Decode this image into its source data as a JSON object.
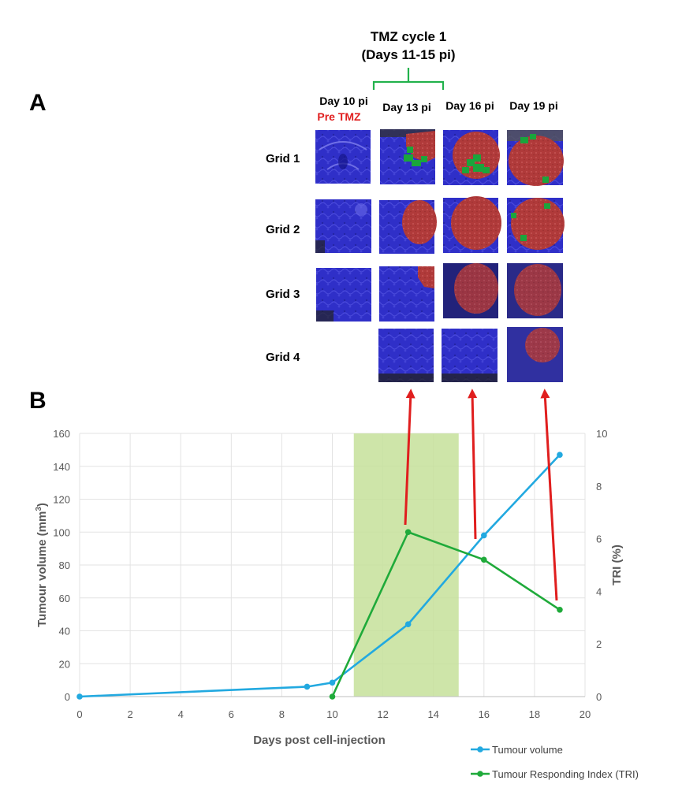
{
  "panels": {
    "a": {
      "label": "A",
      "tmz_bracket": {
        "line1": "TMZ cycle 1",
        "line2": "(Days 11-15 pi)"
      },
      "columns": [
        "Day 10 pi",
        "Day 13 pi",
        "Day 16 pi",
        "Day 19 pi"
      ],
      "pre_treatment_note": "Pre TMZ",
      "rows": [
        "Grid 1",
        "Grid 2",
        "Grid 3",
        "Grid 4"
      ],
      "grid4_day10_shown": false
    },
    "b": {
      "label": "B"
    }
  },
  "chart_data": {
    "type": "line",
    "xlabel": "Days post cell-injection",
    "ylabel_left": "Tumour volume (mm",
    "ylabel_left_sup": "3",
    "ylabel_left_close": ")",
    "ylabel_right": "TRI (%)",
    "xlim": [
      0,
      20
    ],
    "ylim_left": [
      0,
      160
    ],
    "ylim_right": [
      0,
      10
    ],
    "x_ticks": [
      "0",
      "2",
      "4",
      "6",
      "8",
      "10",
      "12",
      "14",
      "16",
      "18",
      "20"
    ],
    "y_left_ticks": [
      "0",
      "20",
      "40",
      "60",
      "80",
      "100",
      "120",
      "140",
      "160"
    ],
    "y_right_ticks": [
      "0",
      "2",
      "4",
      "6",
      "8",
      "10"
    ],
    "shaded_region": {
      "x_start": 10.85,
      "x_end": 15,
      "color": "#c6e09a",
      "meaning": "TMZ cycle 1"
    },
    "series": [
      {
        "name": "Tumour volume",
        "axis": "left",
        "color": "#22a9e0",
        "x": [
          0,
          9,
          10,
          13,
          16,
          19
        ],
        "y": [
          0,
          6,
          8.5,
          44,
          98,
          147
        ]
      },
      {
        "name": "Tumour Responding Index (TRI)",
        "axis": "right",
        "color": "#1faa3a",
        "x": [
          10,
          13,
          16,
          19
        ],
        "y": [
          0,
          6.25,
          5.2,
          3.3
        ]
      }
    ],
    "legend_position": "bottom-right",
    "arrow_color": "#e01e1e"
  },
  "colors": {
    "mri_blue": "#2b2bd0",
    "tumour_red": "#c43434",
    "responding_green": "#1aa53c",
    "bracket": "#22b24c"
  }
}
